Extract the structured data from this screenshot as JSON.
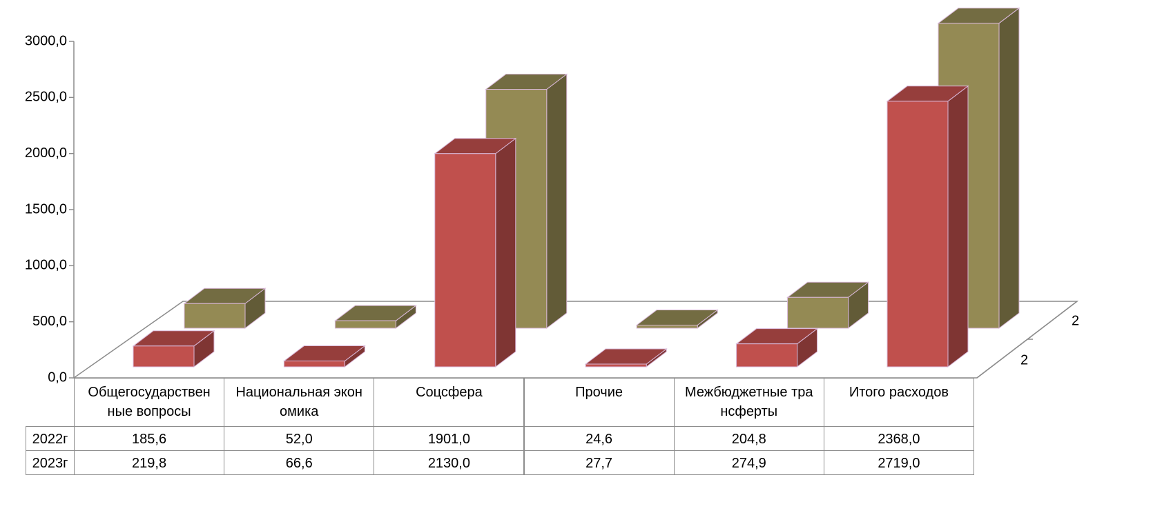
{
  "chart_data": {
    "type": "bar3d",
    "categories": [
      "Общегосударственные вопросы",
      "Национальная экономика",
      "Соцсфера",
      "Прочие",
      "Межбюджетные трансферты",
      "Итого расходов"
    ],
    "series": [
      {
        "name": "2022г",
        "color": "#c0504d",
        "values": [
          185.6,
          52.0,
          1901.0,
          24.6,
          204.8,
          2368.0
        ],
        "value_labels": [
          "185,6",
          "52,0",
          "1901,0",
          "24,6",
          "204,8",
          "2368,0"
        ]
      },
      {
        "name": "2023г",
        "color": "#948a54",
        "values": [
          219.8,
          66.6,
          2130.0,
          27.7,
          274.9,
          2719.0
        ],
        "value_labels": [
          "219,8",
          "66,6",
          "2130,0",
          "27,7",
          "274,9",
          "2719,0"
        ]
      }
    ],
    "ylim": [
      0,
      3000
    ],
    "yticks": [
      {
        "value": 0,
        "label": "0,0"
      },
      {
        "value": 500,
        "label": "500,0"
      },
      {
        "value": 1000,
        "label": "1000,0"
      },
      {
        "value": 1500,
        "label": "1500,0"
      },
      {
        "value": 2000,
        "label": "2000,0"
      },
      {
        "value": 2500,
        "label": "2500,0"
      },
      {
        "value": 3000,
        "label": "3000,0"
      }
    ],
    "depth_labels": [
      "2",
      "2"
    ]
  }
}
